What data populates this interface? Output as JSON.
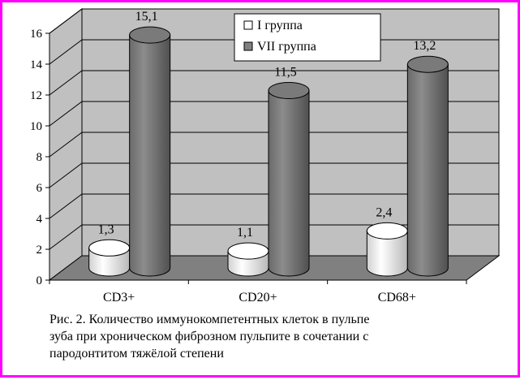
{
  "chart_data": {
    "type": "bar",
    "categories": [
      "CD3+",
      "CD20+",
      "CD68+"
    ],
    "series": [
      {
        "name": "I группа",
        "values": [
          1.3,
          1.1,
          2.4
        ],
        "labels": [
          "1,3",
          "1,1",
          "2,4"
        ],
        "color": "#ffffff"
      },
      {
        "name": "VII группа",
        "values": [
          15.1,
          11.5,
          13.2
        ],
        "labels": [
          "15,1",
          "11,5",
          "13,2"
        ],
        "color": "#808080"
      }
    ],
    "yticks": [
      "0",
      "2",
      "4",
      "6",
      "8",
      "10",
      "12",
      "14",
      "16"
    ],
    "ylim": [
      0,
      16
    ],
    "grid": true,
    "legend": "top-center",
    "style": "3d-cylinder"
  },
  "caption": {
    "line1": "Рис. 2. Количество иммунокомпетентных клеток в пульпе",
    "line2": "зуба при хроническом фиброзном пульпите в сочетании с",
    "line3": "пародонтитом тяжёлой степени"
  },
  "colors": {
    "border": "#ff00ff",
    "wall": "#c0c0c0",
    "floor": "#808080",
    "series1": "#ffffff",
    "series2": "#808080"
  }
}
